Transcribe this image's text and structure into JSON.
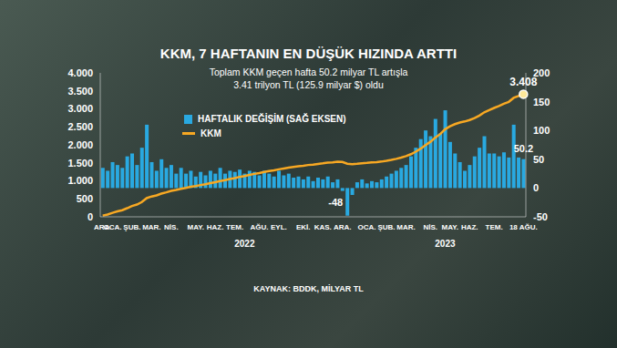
{
  "chart_data": {
    "type": "bar",
    "title": "KKM, 7 HAFTANIN EN DÜŞÜK HIZINDA ARTTI",
    "subtitle": [
      "Toplam KKM geçen hafta 50.2 milyar TL artışla",
      "3.41 trilyon TL (125.9 milyar $) oldu"
    ],
    "source": "KAYNAK: BDDK, MİLYAR TL",
    "annotations": [
      {
        "text": "2022",
        "at": 29
      },
      {
        "text": "2023",
        "at": 70
      }
    ],
    "categories": [
      "ARA.",
      null,
      "OCA.",
      null,
      null,
      null,
      "ŞUB.",
      null,
      null,
      null,
      "MAR.",
      null,
      null,
      null,
      "NİS.",
      null,
      null,
      null,
      null,
      "MAY.",
      null,
      null,
      null,
      "HAZ.",
      null,
      null,
      null,
      "TEM.",
      null,
      null,
      null,
      null,
      "AĞU.",
      null,
      null,
      null,
      "EYL.",
      null,
      null,
      null,
      null,
      "EKİ.",
      null,
      null,
      null,
      "KAS.",
      null,
      null,
      null,
      "ARA.",
      null,
      null,
      null,
      null,
      "OCA.",
      null,
      null,
      null,
      "ŞUB.",
      null,
      null,
      null,
      "MAR.",
      null,
      null,
      null,
      null,
      "NİS.",
      null,
      null,
      null,
      "MAY.",
      null,
      null,
      null,
      "HAZ.",
      null,
      null,
      null,
      null,
      "TEM.",
      null,
      null,
      null,
      null,
      null,
      "18 AĞU."
    ],
    "series": [
      {
        "name": "HAFTALIK DEĞİŞİM (SAĞ EKSEN)",
        "type": "bar",
        "axis": "y2",
        "color": "#29a9e1",
        "values": [
          35,
          30,
          45,
          40,
          35,
          55,
          60,
          40,
          70,
          110,
          45,
          30,
          50,
          35,
          40,
          25,
          35,
          25,
          30,
          20,
          28,
          22,
          30,
          25,
          35,
          25,
          30,
          28,
          32,
          25,
          30,
          28,
          22,
          30,
          25,
          20,
          30,
          22,
          25,
          18,
          20,
          15,
          20,
          12,
          18,
          15,
          20,
          10,
          15,
          -5,
          -48,
          -12,
          10,
          15,
          8,
          12,
          10,
          15,
          20,
          25,
          30,
          35,
          40,
          55,
          70,
          85,
          100,
          90,
          120,
          95,
          135,
          80,
          60,
          45,
          30,
          40,
          55,
          70,
          90,
          60,
          60,
          55,
          62,
          53,
          110,
          53,
          50.2
        ],
        "value_labels": [
          null,
          null,
          null,
          null,
          null,
          null,
          null,
          null,
          null,
          null,
          null,
          null,
          null,
          null,
          null,
          null,
          null,
          null,
          null,
          null,
          null,
          null,
          null,
          null,
          null,
          null,
          null,
          null,
          null,
          null,
          null,
          null,
          null,
          null,
          null,
          null,
          null,
          null,
          null,
          null,
          null,
          null,
          null,
          null,
          null,
          null,
          null,
          null,
          null,
          null,
          "-48",
          null,
          null,
          null,
          null,
          null,
          null,
          null,
          null,
          null,
          null,
          null,
          null,
          null,
          null,
          null,
          null,
          null,
          null,
          null,
          null,
          null,
          null,
          null,
          null,
          null,
          null,
          null,
          null,
          null,
          null,
          null,
          null,
          null,
          null,
          null,
          "50.2"
        ]
      },
      {
        "name": "KKM",
        "type": "line",
        "color": "#f7a823",
        "values": [
          35,
          65,
          110,
          150,
          185,
          240,
          300,
          340,
          410,
          520,
          565,
          595,
          645,
          680,
          720,
          745,
          780,
          805,
          835,
          855,
          883,
          905,
          935,
          960,
          995,
          1020,
          1050,
          1078,
          1110,
          1135,
          1165,
          1193,
          1215,
          1245,
          1270,
          1290,
          1320,
          1342,
          1367,
          1385,
          1405,
          1420,
          1440,
          1452,
          1470,
          1485,
          1505,
          1515,
          1530,
          1525,
          1477,
          1465,
          1475,
          1490,
          1498,
          1510,
          1520,
          1535,
          1555,
          1580,
          1610,
          1645,
          1685,
          1740,
          1810,
          1895,
          1995,
          2085,
          2205,
          2300,
          2435,
          2515,
          2575,
          2620,
          2650,
          2690,
          2745,
          2815,
          2905,
          2965,
          3025,
          3080,
          3142,
          3195,
          3305,
          3358,
          3408
        ],
        "value_labels": [
          null,
          null,
          null,
          null,
          null,
          null,
          null,
          null,
          null,
          null,
          null,
          null,
          null,
          null,
          null,
          null,
          null,
          null,
          null,
          null,
          null,
          null,
          null,
          null,
          null,
          null,
          null,
          null,
          null,
          null,
          null,
          null,
          null,
          null,
          null,
          null,
          null,
          null,
          null,
          null,
          null,
          null,
          null,
          null,
          null,
          null,
          null,
          null,
          null,
          null,
          null,
          null,
          null,
          null,
          null,
          null,
          null,
          null,
          null,
          null,
          null,
          null,
          null,
          null,
          null,
          null,
          null,
          null,
          null,
          null,
          null,
          null,
          null,
          null,
          null,
          null,
          null,
          null,
          null,
          null,
          null,
          null,
          null,
          null,
          null,
          null,
          "3.408"
        ]
      }
    ],
    "ylim": [
      0,
      4000
    ],
    "yticks": [
      0,
      500,
      {
        "value": 1000,
        "label": "1.000"
      },
      {
        "value": 1500,
        "label": "1.500"
      },
      {
        "value": 2000,
        "label": "2.000"
      },
      {
        "value": 2500,
        "label": "2.500"
      },
      {
        "value": 3000,
        "label": "3.000"
      },
      {
        "value": 3500,
        "label": "3.500"
      },
      {
        "value": 4000,
        "label": "4.000"
      }
    ],
    "y2lim": [
      -50,
      200
    ],
    "y2ticks": [
      -50,
      0,
      50,
      100,
      150,
      200
    ],
    "grid": false,
    "legend": "upper left"
  }
}
